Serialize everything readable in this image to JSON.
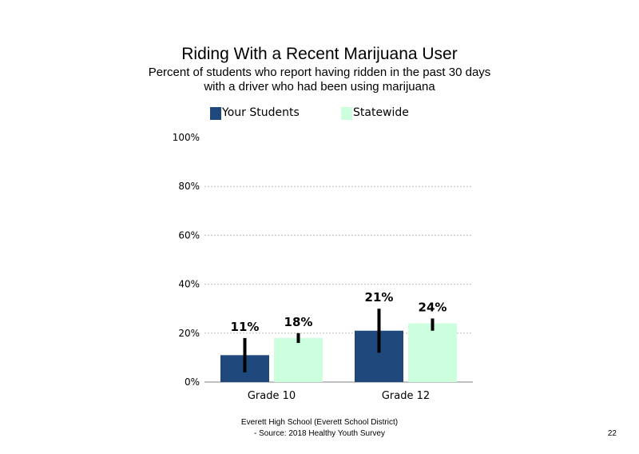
{
  "chart_data": {
    "type": "bar",
    "title": "Riding With a Recent Marijuana User",
    "subtitle": [
      "Percent of students who report having ridden in the past 30 days",
      "with a driver who had been using marijuana"
    ],
    "categories": [
      "Grade 10",
      "Grade 12"
    ],
    "series": [
      {
        "name": "Your Students",
        "color": "#1f497d",
        "values": [
          11,
          21
        ],
        "labels": [
          "11%",
          "21%"
        ],
        "error_low": [
          4,
          12
        ],
        "error_high": [
          18,
          30
        ]
      },
      {
        "name": "Statewide",
        "color": "#ccffdd",
        "values": [
          18,
          24
        ],
        "labels": [
          "18%",
          "24%"
        ],
        "error_low": [
          16,
          21
        ],
        "error_high": [
          20,
          26
        ]
      }
    ],
    "ylim": [
      0,
      100
    ],
    "yticks": [
      0,
      20,
      40,
      60,
      80,
      100
    ],
    "ytick_labels": [
      "0%",
      "20%",
      "40%",
      "60%",
      "80%",
      "100%"
    ],
    "grid": true,
    "legend_position": "top"
  },
  "footer": {
    "line1": "Everett High School (Everett School District)",
    "line2": "- Source: 2018 Healthy Youth Survey"
  },
  "page_number": "22"
}
